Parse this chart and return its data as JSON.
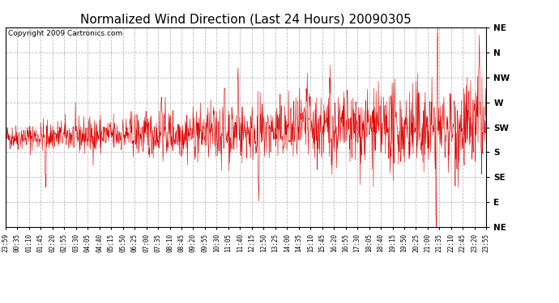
{
  "title": "Normalized Wind Direction (Last 24 Hours) 20090305",
  "copyright_text": "Copyright 2009 Cartronics.com",
  "line_color": "#dd0000",
  "background_color": "#ffffff",
  "grid_color": "#bbbbbb",
  "ytick_labels": [
    "NE",
    "N",
    "NW",
    "W",
    "SW",
    "S",
    "SE",
    "E",
    "NE"
  ],
  "ytick_values": [
    1.0,
    0.875,
    0.75,
    0.625,
    0.5,
    0.375,
    0.25,
    0.125,
    0.0
  ],
  "ylim": [
    0.0,
    1.0
  ],
  "x_labels": [
    "23:59",
    "00:35",
    "01:10",
    "01:45",
    "02:20",
    "02:55",
    "03:30",
    "04:05",
    "04:40",
    "05:15",
    "05:50",
    "06:25",
    "07:00",
    "07:35",
    "08:10",
    "08:45",
    "09:20",
    "09:55",
    "10:30",
    "11:05",
    "11:40",
    "12:15",
    "12:50",
    "13:25",
    "14:00",
    "14:35",
    "15:10",
    "15:45",
    "16:20",
    "16:55",
    "17:30",
    "18:05",
    "18:40",
    "19:15",
    "19:50",
    "20:25",
    "21:00",
    "21:35",
    "22:10",
    "22:45",
    "23:20",
    "23:55"
  ],
  "num_points": 1440,
  "seed": 42,
  "title_fontsize": 11,
  "copyright_fontsize": 6.5
}
